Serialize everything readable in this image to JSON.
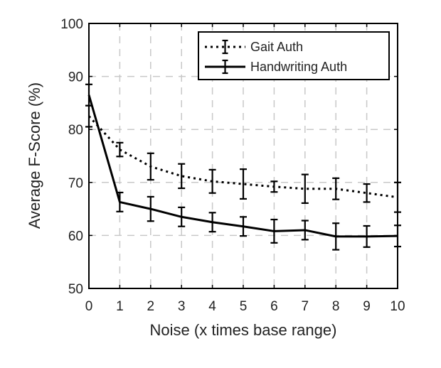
{
  "chart_data": {
    "type": "line",
    "title": "",
    "xlabel": "Noise (x times base range)",
    "ylabel": "Average F-Score (%)",
    "xlim": [
      0,
      10
    ],
    "ylim": [
      50,
      100
    ],
    "x_ticks": [
      0,
      1,
      2,
      3,
      4,
      5,
      6,
      7,
      8,
      9,
      10
    ],
    "y_ticks": [
      50,
      60,
      70,
      80,
      90,
      100
    ],
    "grid": true,
    "legend_position": "top-right",
    "x": [
      0,
      1,
      2,
      3,
      4,
      5,
      6,
      7,
      8,
      9,
      10
    ],
    "series": [
      {
        "name": "Gait Auth",
        "style": "dotted",
        "color": "#000000",
        "values": [
          82.5,
          76.2,
          73.0,
          71.2,
          70.2,
          69.7,
          69.2,
          68.8,
          68.8,
          68.0,
          67.2
        ],
        "errors": [
          2.0,
          1.3,
          2.5,
          2.3,
          2.2,
          2.8,
          1.0,
          2.7,
          2.0,
          1.7,
          2.8
        ]
      },
      {
        "name": "Handwriting Auth",
        "style": "solid",
        "color": "#000000",
        "values": [
          86.5,
          66.3,
          65.0,
          63.5,
          62.5,
          61.7,
          60.8,
          61.0,
          59.8,
          59.8,
          59.9
        ],
        "errors": [
          2.0,
          1.8,
          2.3,
          1.8,
          1.8,
          1.8,
          2.2,
          1.8,
          2.5,
          2.0,
          2.0
        ]
      }
    ]
  }
}
